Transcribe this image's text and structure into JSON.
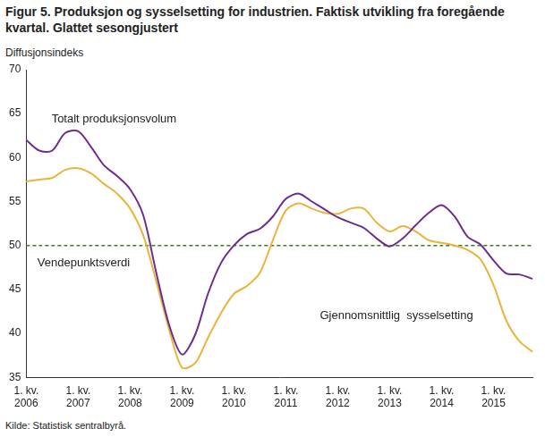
{
  "chart_data": {
    "type": "line",
    "title": "Figur 5. Produksjon og sysselsetting for industrien. Faktisk utvikling fra foregående kvartal. Glattet sesongjustert",
    "y_label": "Diffusjonsindeks",
    "source": "Kilde: Statistisk sentralbyrå.",
    "categories": [
      [
        "1. kv.",
        "2006"
      ],
      null,
      null,
      null,
      [
        "1. kv.",
        "2007"
      ],
      null,
      null,
      null,
      [
        "1. kv.",
        "2008"
      ],
      null,
      null,
      null,
      [
        "1. kv.",
        "2009"
      ],
      null,
      null,
      null,
      [
        "1. kv.",
        "2010"
      ],
      null,
      null,
      null,
      [
        "1. kv.",
        "2011"
      ],
      null,
      null,
      null,
      [
        "1. kv.",
        "2012"
      ],
      null,
      null,
      null,
      [
        "1. kv.",
        "2013"
      ],
      null,
      null,
      null,
      [
        "1. kv.",
        "2014"
      ],
      null,
      null,
      null,
      [
        "1. kv.",
        "2015"
      ],
      null,
      null,
      null
    ],
    "series": [
      {
        "name": "Totalt produksjonsvolum",
        "color": "#6e2c8f",
        "marker": "none",
        "line_style": "solid",
        "values": [
          62,
          60.8,
          60.8,
          62.8,
          63,
          61.2,
          59.1,
          57.9,
          56.4,
          53.5,
          47,
          41,
          37.6,
          39.8,
          44.5,
          48,
          50,
          51.3,
          51.9,
          53.3,
          55.3,
          55.9,
          55,
          54.1,
          53.2,
          52.6,
          52,
          50.8,
          49.9,
          50.8,
          52.3,
          53.7,
          54.6,
          53.3,
          51,
          50.1,
          48.3,
          46.8,
          46.7,
          46.2
        ]
      },
      {
        "name": "Gjennomsnittlig  sysselsetting",
        "color": "#eab43a",
        "marker": "none",
        "line_style": "solid",
        "values": [
          57.3,
          57.5,
          57.7,
          58.6,
          58.8,
          58.2,
          57,
          55.9,
          54.2,
          51.2,
          46,
          40.5,
          36.1,
          36.6,
          39.5,
          42.3,
          44.5,
          45.4,
          46.9,
          50.6,
          54,
          54.8,
          54.2,
          53.7,
          53.6,
          54.2,
          54.2,
          52.6,
          51.6,
          52.2,
          51.6,
          50.6,
          50.3,
          50,
          49.5,
          48.4,
          45.5,
          41.4,
          39.1,
          37.9
        ]
      },
      {
        "name": "Vendepunktsverdi",
        "color": "#3a7d22",
        "marker": "none",
        "line_style": "dashed",
        "values": [
          50,
          50,
          50,
          50,
          50,
          50,
          50,
          50,
          50,
          50,
          50,
          50,
          50,
          50,
          50,
          50,
          50,
          50,
          50,
          50,
          50,
          50,
          50,
          50,
          50,
          50,
          50,
          50,
          50,
          50,
          50,
          50,
          50,
          50,
          50,
          50,
          50,
          50,
          50,
          50
        ]
      }
    ],
    "ylim": [
      35,
      70
    ],
    "yticks": [
      35,
      40,
      45,
      50,
      55,
      60,
      65,
      70
    ],
    "grid": false,
    "legend": "none"
  }
}
